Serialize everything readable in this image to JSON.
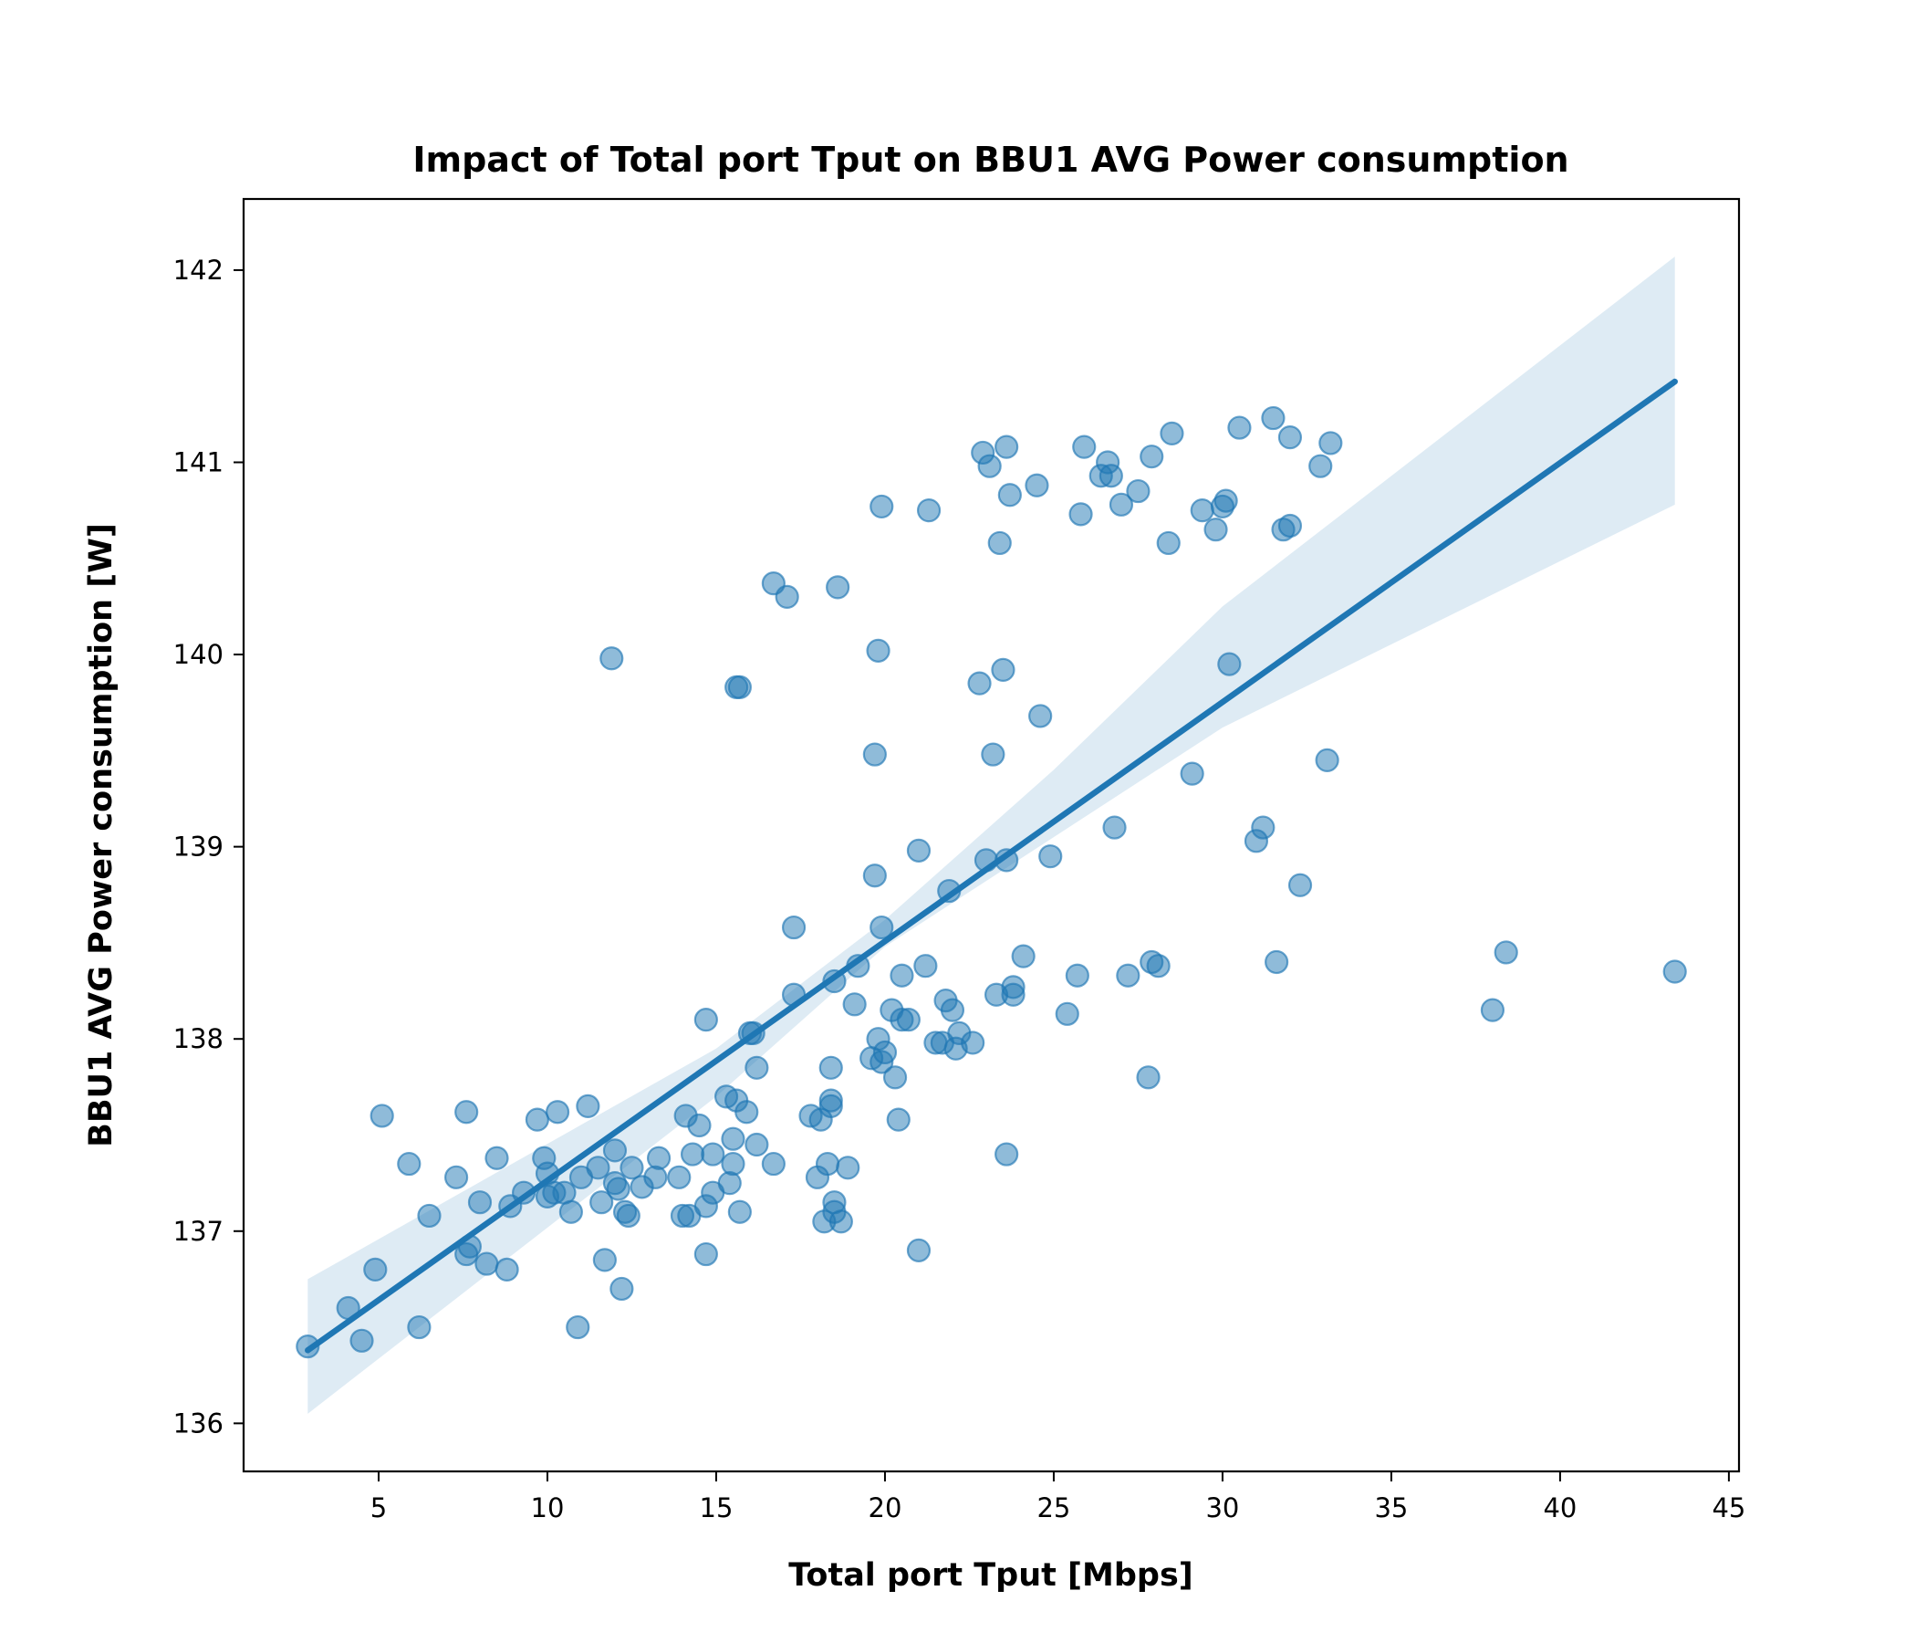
{
  "chart_data": {
    "type": "scatter",
    "title": "Impact of Total port Tput on BBU1 AVG Power consumption",
    "xlabel": "Total port Tput [Mbps]",
    "ylabel": "BBU1 AVG Power consumption [W]",
    "xlim": [
      1,
      45.3
    ],
    "ylim": [
      135.75,
      142.37
    ],
    "x_ticks": [
      5,
      10,
      15,
      20,
      25,
      30,
      35,
      40,
      45
    ],
    "y_ticks": [
      136,
      137,
      138,
      139,
      140,
      141,
      142
    ],
    "grid": false,
    "colors": {
      "points": "#1f77b4",
      "line": "#1f77b4",
      "band": "#1f77b4"
    },
    "regression": {
      "x": [
        2.9,
        43.4
      ],
      "y": [
        136.38,
        141.42
      ],
      "ci_band": {
        "x": [
          2.9,
          15,
          20,
          25,
          30,
          43.4
        ],
        "upper": [
          136.75,
          137.95,
          138.62,
          139.4,
          140.25,
          142.07
        ],
        "lower": [
          136.05,
          137.7,
          138.48,
          139.05,
          139.62,
          140.78
        ]
      }
    },
    "series": [
      {
        "points": [
          [
            2.9,
            136.4
          ],
          [
            4.1,
            136.6
          ],
          [
            4.5,
            136.43
          ],
          [
            4.9,
            136.8
          ],
          [
            5.1,
            137.6
          ],
          [
            5.9,
            137.35
          ],
          [
            6.2,
            136.5
          ],
          [
            6.5,
            137.08
          ],
          [
            7.3,
            137.28
          ],
          [
            7.6,
            137.62
          ],
          [
            7.6,
            136.88
          ],
          [
            7.7,
            136.92
          ],
          [
            8.0,
            137.15
          ],
          [
            8.2,
            136.83
          ],
          [
            8.5,
            137.38
          ],
          [
            8.8,
            136.8
          ],
          [
            8.9,
            137.13
          ],
          [
            9.3,
            137.2
          ],
          [
            9.7,
            137.58
          ],
          [
            9.9,
            137.38
          ],
          [
            10.0,
            137.3
          ],
          [
            10.0,
            137.18
          ],
          [
            10.2,
            137.2
          ],
          [
            10.3,
            137.62
          ],
          [
            10.5,
            137.2
          ],
          [
            10.7,
            137.1
          ],
          [
            10.9,
            136.5
          ],
          [
            11.0,
            137.28
          ],
          [
            11.2,
            137.65
          ],
          [
            11.5,
            137.33
          ],
          [
            11.6,
            137.15
          ],
          [
            11.7,
            136.85
          ],
          [
            11.9,
            139.98
          ],
          [
            12.0,
            137.42
          ],
          [
            12.0,
            137.25
          ],
          [
            12.1,
            137.22
          ],
          [
            12.2,
            136.7
          ],
          [
            12.3,
            137.1
          ],
          [
            12.4,
            137.08
          ],
          [
            12.5,
            137.33
          ],
          [
            12.8,
            137.23
          ],
          [
            13.2,
            137.28
          ],
          [
            13.3,
            137.38
          ],
          [
            13.9,
            137.28
          ],
          [
            14.0,
            137.08
          ],
          [
            14.1,
            137.6
          ],
          [
            14.2,
            137.08
          ],
          [
            14.3,
            137.4
          ],
          [
            14.5,
            137.55
          ],
          [
            14.7,
            136.88
          ],
          [
            14.7,
            137.13
          ],
          [
            14.7,
            138.1
          ],
          [
            14.9,
            137.4
          ],
          [
            14.9,
            137.2
          ],
          [
            15.3,
            137.7
          ],
          [
            15.4,
            137.25
          ],
          [
            15.5,
            137.48
          ],
          [
            15.5,
            137.35
          ],
          [
            15.6,
            137.68
          ],
          [
            15.6,
            139.83
          ],
          [
            15.7,
            139.83
          ],
          [
            15.7,
            137.1
          ],
          [
            15.9,
            137.62
          ],
          [
            16.0,
            138.03
          ],
          [
            16.1,
            138.03
          ],
          [
            16.2,
            137.85
          ],
          [
            16.2,
            137.45
          ],
          [
            16.7,
            137.35
          ],
          [
            16.7,
            140.37
          ],
          [
            17.1,
            140.3
          ],
          [
            17.3,
            138.58
          ],
          [
            17.3,
            138.23
          ],
          [
            17.8,
            137.6
          ],
          [
            18.0,
            137.28
          ],
          [
            18.1,
            137.58
          ],
          [
            18.2,
            137.05
          ],
          [
            18.3,
            137.35
          ],
          [
            18.4,
            137.85
          ],
          [
            18.4,
            137.65
          ],
          [
            18.4,
            137.68
          ],
          [
            18.5,
            137.15
          ],
          [
            18.5,
            137.1
          ],
          [
            18.5,
            138.3
          ],
          [
            18.6,
            140.35
          ],
          [
            18.7,
            137.05
          ],
          [
            18.9,
            137.33
          ],
          [
            19.1,
            138.18
          ],
          [
            19.2,
            138.38
          ],
          [
            19.6,
            137.9
          ],
          [
            19.7,
            138.85
          ],
          [
            19.7,
            139.48
          ],
          [
            19.8,
            138.0
          ],
          [
            19.8,
            140.02
          ],
          [
            19.9,
            137.88
          ],
          [
            19.9,
            138.58
          ],
          [
            19.9,
            140.77
          ],
          [
            20.0,
            137.93
          ],
          [
            20.2,
            138.15
          ],
          [
            20.3,
            137.8
          ],
          [
            20.4,
            137.58
          ],
          [
            20.5,
            138.33
          ],
          [
            20.5,
            138.1
          ],
          [
            20.7,
            138.1
          ],
          [
            21.0,
            138.98
          ],
          [
            21.0,
            136.9
          ],
          [
            21.2,
            138.38
          ],
          [
            21.3,
            140.75
          ],
          [
            21.5,
            137.98
          ],
          [
            21.7,
            137.98
          ],
          [
            21.8,
            138.2
          ],
          [
            21.9,
            138.77
          ],
          [
            22.0,
            138.15
          ],
          [
            22.1,
            137.95
          ],
          [
            22.2,
            138.03
          ],
          [
            22.6,
            137.98
          ],
          [
            22.8,
            139.85
          ],
          [
            22.9,
            141.05
          ],
          [
            23.0,
            138.93
          ],
          [
            23.1,
            140.98
          ],
          [
            23.2,
            139.48
          ],
          [
            23.3,
            138.23
          ],
          [
            23.4,
            140.58
          ],
          [
            23.5,
            139.92
          ],
          [
            23.6,
            141.08
          ],
          [
            23.6,
            138.93
          ],
          [
            23.6,
            137.4
          ],
          [
            23.7,
            140.83
          ],
          [
            23.8,
            138.27
          ],
          [
            23.8,
            138.23
          ],
          [
            24.1,
            138.43
          ],
          [
            24.5,
            140.88
          ],
          [
            24.6,
            139.68
          ],
          [
            24.9,
            138.95
          ],
          [
            25.4,
            138.13
          ],
          [
            25.7,
            138.33
          ],
          [
            25.8,
            140.73
          ],
          [
            25.9,
            141.08
          ],
          [
            26.4,
            140.93
          ],
          [
            26.6,
            141.0
          ],
          [
            26.7,
            140.93
          ],
          [
            26.8,
            139.1
          ],
          [
            27.0,
            140.78
          ],
          [
            27.2,
            138.33
          ],
          [
            27.5,
            140.85
          ],
          [
            27.8,
            137.8
          ],
          [
            27.9,
            141.03
          ],
          [
            27.9,
            138.4
          ],
          [
            28.1,
            138.38
          ],
          [
            28.4,
            140.58
          ],
          [
            28.5,
            141.15
          ],
          [
            29.1,
            139.38
          ],
          [
            29.4,
            140.75
          ],
          [
            29.8,
            140.65
          ],
          [
            30.0,
            140.77
          ],
          [
            30.1,
            140.8
          ],
          [
            30.2,
            139.95
          ],
          [
            30.5,
            141.18
          ],
          [
            31.0,
            139.03
          ],
          [
            31.2,
            139.1
          ],
          [
            31.5,
            141.23
          ],
          [
            31.6,
            138.4
          ],
          [
            31.8,
            140.65
          ],
          [
            32.0,
            141.13
          ],
          [
            32.0,
            140.67
          ],
          [
            32.3,
            138.8
          ],
          [
            32.9,
            140.98
          ],
          [
            33.1,
            139.45
          ],
          [
            33.2,
            141.1
          ],
          [
            38.0,
            138.15
          ],
          [
            38.4,
            138.45
          ],
          [
            43.4,
            138.35
          ]
        ]
      }
    ]
  }
}
